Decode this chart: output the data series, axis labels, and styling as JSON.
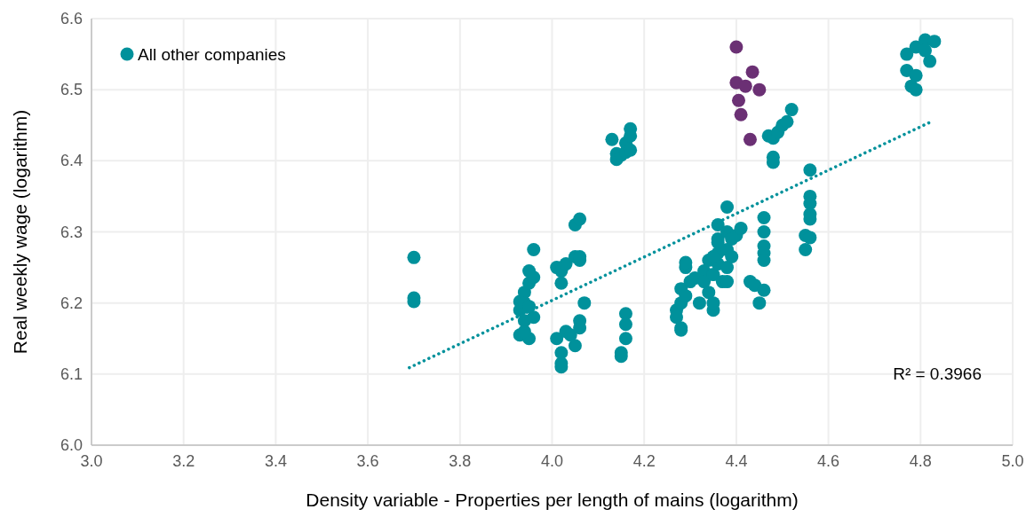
{
  "chart_data": {
    "type": "scatter",
    "xlabel": "Density variable - Properties per length of mains (logarithm)",
    "ylabel": "Real weekly wage (logarithm)",
    "xlim": [
      3.0,
      5.0
    ],
    "xticks": [
      {
        "value": 3.0,
        "label": "3.0"
      },
      {
        "value": 3.2,
        "label": "3.2"
      },
      {
        "value": 3.4,
        "label": "3.4"
      },
      {
        "value": 3.6,
        "label": "3.6"
      },
      {
        "value": 3.8,
        "label": "3.8"
      },
      {
        "value": 4.0,
        "label": "4.0"
      },
      {
        "value": 4.2,
        "label": "4.2"
      },
      {
        "value": 4.4,
        "label": "4.4"
      },
      {
        "value": 4.6,
        "label": "4.6"
      },
      {
        "value": 4.8,
        "label": "4.8"
      },
      {
        "value": 5.0,
        "label": "5.0"
      }
    ],
    "ylim": [
      6.0,
      6.6
    ],
    "yticks": [
      {
        "value": 6.0,
        "label": "6.0"
      },
      {
        "value": 6.1,
        "label": "6.1"
      },
      {
        "value": 6.2,
        "label": "6.2"
      },
      {
        "value": 6.3,
        "label": "6.3"
      },
      {
        "value": 6.4,
        "label": "6.4"
      },
      {
        "value": 6.5,
        "label": "6.5"
      },
      {
        "value": 6.6,
        "label": "6.6"
      }
    ],
    "grid": true,
    "legend": "top left",
    "marker": "circle",
    "annotations": [
      "R² = 0.3966"
    ],
    "series": [
      {
        "name": "All other companies",
        "color": "#00919b",
        "x": [
          3.7,
          3.7,
          3.7,
          3.93,
          3.93,
          3.94,
          3.93,
          3.94,
          3.95,
          3.95,
          3.96,
          3.96,
          3.95,
          3.96,
          3.94,
          3.94,
          3.95,
          4.01,
          4.02,
          4.03,
          4.05,
          4.06,
          4.02,
          4.05,
          4.06,
          4.06,
          4.01,
          4.02,
          4.02,
          4.02,
          4.03,
          4.04,
          4.05,
          4.06,
          4.06,
          4.07,
          4.13,
          4.14,
          4.14,
          4.15,
          4.16,
          4.16,
          4.17,
          4.17,
          4.17,
          4.16,
          4.16,
          4.16,
          4.15,
          4.15,
          4.27,
          4.27,
          4.28,
          4.28,
          4.28,
          4.28,
          4.29,
          4.29,
          4.29,
          4.3,
          4.31,
          4.32,
          4.33,
          4.33,
          4.34,
          4.34,
          4.35,
          4.35,
          4.35,
          4.36,
          4.36,
          4.36,
          4.36,
          4.37,
          4.38,
          4.38,
          4.38,
          4.39,
          4.39,
          4.4,
          4.41,
          4.36,
          4.35,
          4.38,
          4.38,
          4.43,
          4.44,
          4.45,
          4.46,
          4.46,
          4.46,
          4.46,
          4.46,
          4.46,
          4.47,
          4.48,
          4.49,
          4.5,
          4.51,
          4.52,
          4.48,
          4.48,
          4.56,
          4.56,
          4.56,
          4.56,
          4.56,
          4.55,
          4.56,
          4.55,
          4.77,
          4.77,
          4.78,
          4.79,
          4.79,
          4.79,
          4.81,
          4.83,
          4.82,
          4.81
        ],
        "values": [
          6.264,
          6.207,
          6.202,
          6.202,
          6.155,
          6.175,
          6.19,
          6.215,
          6.15,
          6.228,
          6.236,
          6.275,
          6.245,
          6.18,
          6.2,
          6.16,
          6.195,
          6.25,
          6.245,
          6.255,
          6.265,
          6.26,
          6.228,
          6.31,
          6.318,
          6.265,
          6.15,
          6.13,
          6.115,
          6.11,
          6.16,
          6.155,
          6.14,
          6.165,
          6.175,
          6.2,
          6.43,
          6.41,
          6.402,
          6.408,
          6.412,
          6.425,
          6.435,
          6.445,
          6.415,
          6.185,
          6.17,
          6.15,
          6.13,
          6.125,
          6.19,
          6.18,
          6.165,
          6.162,
          6.2,
          6.22,
          6.21,
          6.25,
          6.257,
          6.23,
          6.235,
          6.2,
          6.245,
          6.23,
          6.26,
          6.215,
          6.19,
          6.2,
          6.24,
          6.255,
          6.27,
          6.29,
          6.31,
          6.23,
          6.3,
          6.275,
          6.25,
          6.29,
          6.265,
          6.295,
          6.305,
          6.285,
          6.265,
          6.335,
          6.23,
          6.23,
          6.225,
          6.2,
          6.218,
          6.32,
          6.3,
          6.28,
          6.27,
          6.26,
          6.435,
          6.432,
          6.44,
          6.45,
          6.455,
          6.472,
          6.405,
          6.398,
          6.387,
          6.35,
          6.34,
          6.325,
          6.318,
          6.295,
          6.292,
          6.275,
          6.55,
          6.527,
          6.505,
          6.5,
          6.52,
          6.56,
          6.57,
          6.568,
          6.54,
          6.555
        ]
      },
      {
        "color": "#6b3074",
        "x": [
          4.4,
          4.4,
          4.42,
          4.435,
          4.45,
          4.405,
          4.41,
          4.43
        ],
        "values": [
          6.56,
          6.51,
          6.505,
          6.525,
          6.5,
          6.485,
          6.465,
          6.43
        ]
      },
      {
        "type": "line",
        "color": "#00919b",
        "line_style": "dotted",
        "marker": "none",
        "x": [
          3.69,
          4.82
        ],
        "values": [
          6.109,
          6.454
        ]
      }
    ]
  }
}
